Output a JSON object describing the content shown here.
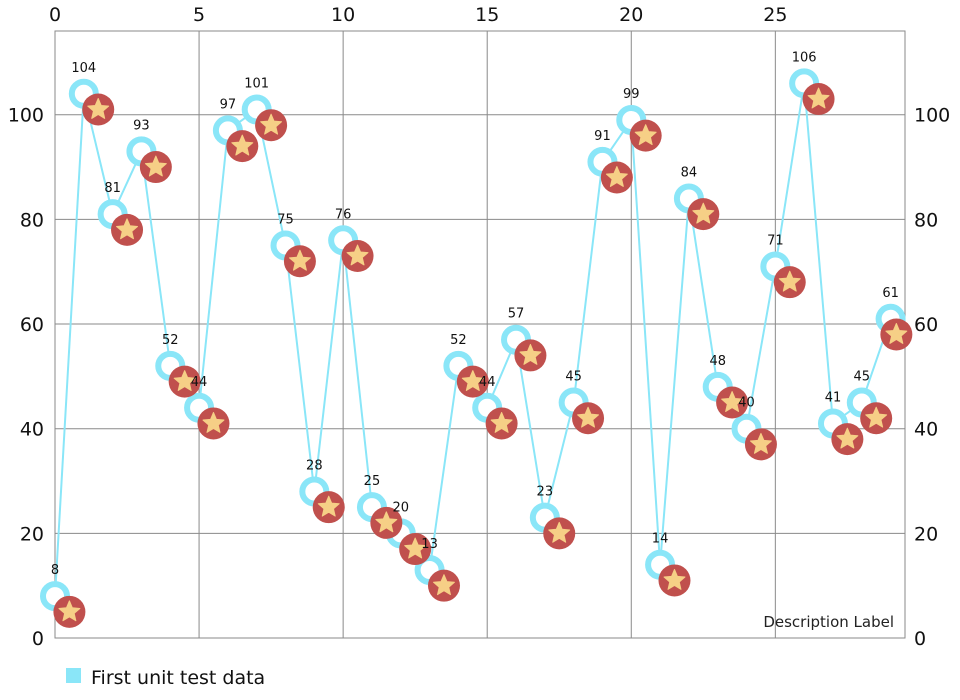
{
  "chart_data": {
    "type": "line",
    "description_label": "Description Label",
    "x_ticks": [
      0,
      5,
      10,
      15,
      20,
      25
    ],
    "y_ticks": [
      0,
      20,
      40,
      60,
      80,
      100
    ],
    "xlim": [
      0,
      29.5
    ],
    "ylim": [
      0,
      116
    ],
    "grid": true,
    "legend_position": "bottom-left",
    "series": [
      {
        "name": "First unit test data",
        "color": "#8ae6f8",
        "marker": "ring",
        "show_values": true,
        "x": [
          0,
          1,
          2,
          3,
          4,
          5,
          6,
          7,
          8,
          9,
          10,
          11,
          12,
          13,
          14,
          15,
          16,
          17,
          18,
          19,
          20,
          21,
          22,
          23,
          24,
          25,
          26,
          27,
          28,
          29
        ],
        "values": [
          8,
          104,
          81,
          93,
          52,
          44,
          97,
          101,
          75,
          28,
          76,
          25,
          20,
          13,
          52,
          44,
          57,
          23,
          45,
          91,
          99,
          14,
          84,
          48,
          40,
          71,
          106,
          41,
          45,
          61
        ],
        "value_labels": [
          "8",
          "104",
          "81",
          "93",
          "52",
          "44",
          "97",
          "101",
          "75",
          "28",
          "76",
          "25",
          "20",
          "13",
          "52",
          "44",
          "57",
          "23",
          "45",
          "91",
          "99",
          "14",
          "84",
          "48",
          "40",
          "71",
          "106",
          "41",
          "45",
          "61"
        ]
      },
      {
        "color": "#c0504d",
        "marker": "star",
        "show_values": false,
        "x": [
          0.5,
          1.5,
          2.5,
          3.5,
          4.5,
          5.5,
          6.5,
          7.5,
          8.5,
          9.5,
          10.5,
          11.5,
          12.5,
          13.5,
          14.5,
          15.5,
          16.5,
          17.5,
          18.5,
          19.5,
          20.5,
          21.5,
          22.5,
          23.5,
          24.5,
          25.5,
          26.5,
          27.5,
          28.5,
          29.2
        ],
        "values": [
          5,
          101,
          78,
          90,
          49,
          41,
          94,
          98,
          72,
          25,
          73,
          22,
          17,
          10,
          49,
          41,
          54,
          20,
          42,
          88,
          96,
          11,
          81,
          45,
          37,
          68,
          103,
          38,
          42,
          58
        ]
      }
    ]
  }
}
